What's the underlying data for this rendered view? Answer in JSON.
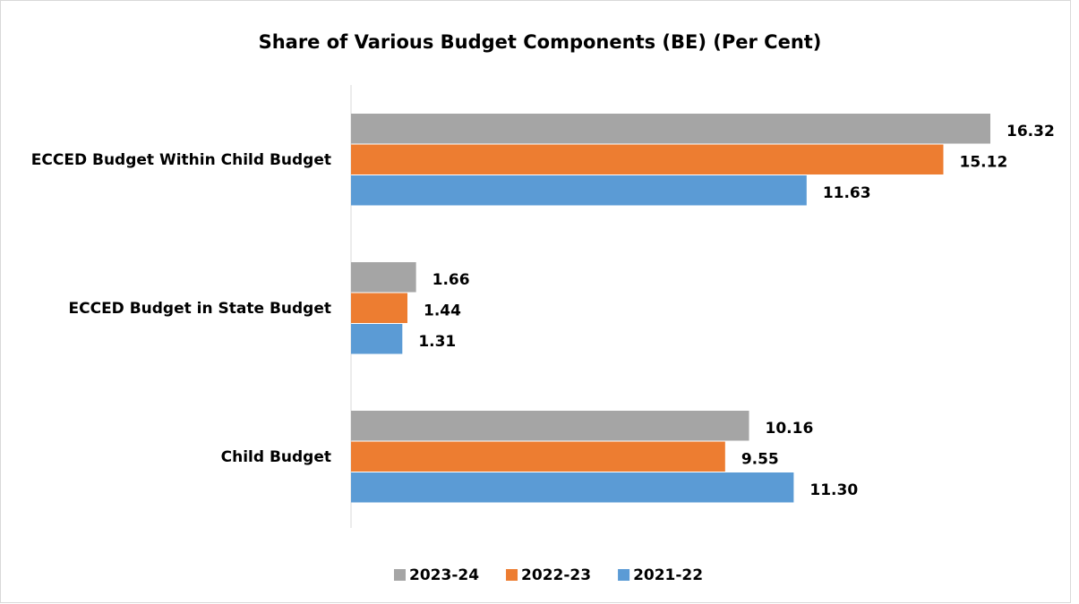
{
  "chart_data": {
    "type": "hbar",
    "title": "Share of Various Budget Components (BE) (Per Cent)",
    "categories": [
      "ECCED Budget Within Child Budget",
      "ECCED Budget in State Budget",
      "Child Budget"
    ],
    "series": [
      {
        "name": "2023-24",
        "color": "#a5a5a5",
        "values": [
          16.32,
          1.66,
          10.16
        ],
        "value_labels": [
          "16.32",
          "1.66",
          "10.16"
        ]
      },
      {
        "name": "2022-23",
        "color": "#ed7d31",
        "values": [
          15.12,
          1.44,
          9.55
        ],
        "value_labels": [
          "15.12",
          "1.44",
          "9.55"
        ]
      },
      {
        "name": "2021-22",
        "color": "#5b9bd5",
        "values": [
          11.63,
          1.31,
          11.3
        ],
        "value_labels": [
          "11.63",
          "1.31",
          "11.30"
        ]
      }
    ],
    "legend": "bottom"
  }
}
